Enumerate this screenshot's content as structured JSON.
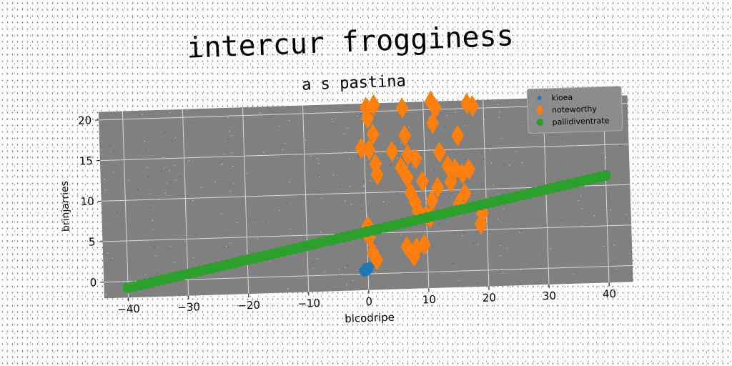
{
  "chart_data": {
    "type": "scatter",
    "title": "intercur frogginess",
    "subtitle": "a s pastina",
    "xlabel": "blcodripe",
    "ylabel": "brinjarries",
    "xlim": [
      -44,
      44
    ],
    "ylim": [
      -2,
      21
    ],
    "xticks": [
      "−40",
      "−30",
      "−20",
      "−10",
      "0",
      "10",
      "20",
      "30",
      "40"
    ],
    "yticks": [
      "0",
      "5",
      "10",
      "15",
      "20"
    ],
    "grid": true,
    "legend_position": "top-right",
    "series": [
      {
        "name": "kioea",
        "marker": "circle-small",
        "color": "#1f77b4",
        "points": [
          [
            -0.8,
            0.4
          ],
          [
            -0.4,
            0.8
          ],
          [
            0.1,
            0.5
          ],
          [
            -0.6,
            0.2
          ],
          [
            0.3,
            0.9
          ],
          [
            -0.2,
            0.3
          ]
        ]
      },
      {
        "name": "noteworthy",
        "marker": "diamond",
        "color": "#ff7f0e",
        "points": [
          [
            0.5,
            20.5
          ],
          [
            1.8,
            20.8
          ],
          [
            0.7,
            19.2
          ],
          [
            6.5,
            20.3
          ],
          [
            11.3,
            21.0
          ],
          [
            12.0,
            20.2
          ],
          [
            17.3,
            20.6
          ],
          [
            18.2,
            20.3
          ],
          [
            1.5,
            17.2
          ],
          [
            6.8,
            16.9
          ],
          [
            11.5,
            18.3
          ],
          [
            15.6,
            16.7
          ],
          [
            -0.5,
            15.5
          ],
          [
            0.8,
            15.3
          ],
          [
            4.6,
            15.0
          ],
          [
            1.8,
            13.5
          ],
          [
            2.0,
            12.2
          ],
          [
            6.0,
            13.0
          ],
          [
            7.2,
            14.5
          ],
          [
            8.5,
            14.0
          ],
          [
            12.5,
            14.7
          ],
          [
            13.8,
            13.0
          ],
          [
            15.0,
            12.6
          ],
          [
            16.2,
            12.0
          ],
          [
            17.3,
            12.5
          ],
          [
            7.0,
            11.7
          ],
          [
            9.5,
            11.2
          ],
          [
            12.0,
            10.4
          ],
          [
            14.2,
            11.0
          ],
          [
            7.5,
            9.8
          ],
          [
            8.2,
            8.6
          ],
          [
            11.0,
            8.8
          ],
          [
            16.5,
            9.5
          ],
          [
            15.5,
            8.3
          ],
          [
            8.6,
            7.6
          ],
          [
            10.0,
            7.0
          ],
          [
            0.2,
            5.9
          ],
          [
            0.4,
            4.5
          ],
          [
            10.6,
            6.7
          ],
          [
            19.3,
            7.0
          ],
          [
            19.0,
            5.7
          ],
          [
            6.6,
            3.2
          ],
          [
            8.2,
            3.0
          ],
          [
            9.5,
            3.4
          ],
          [
            7.7,
            2.0
          ],
          [
            0.9,
            2.6
          ],
          [
            1.5,
            1.7
          ]
        ]
      },
      {
        "name": "pallidiventrate",
        "marker": "circle-large",
        "color": "#2ca02c",
        "line": {
          "from": [
            -40,
            -0.8
          ],
          "to": [
            40,
            11.2
          ],
          "count": 81
        }
      }
    ]
  }
}
